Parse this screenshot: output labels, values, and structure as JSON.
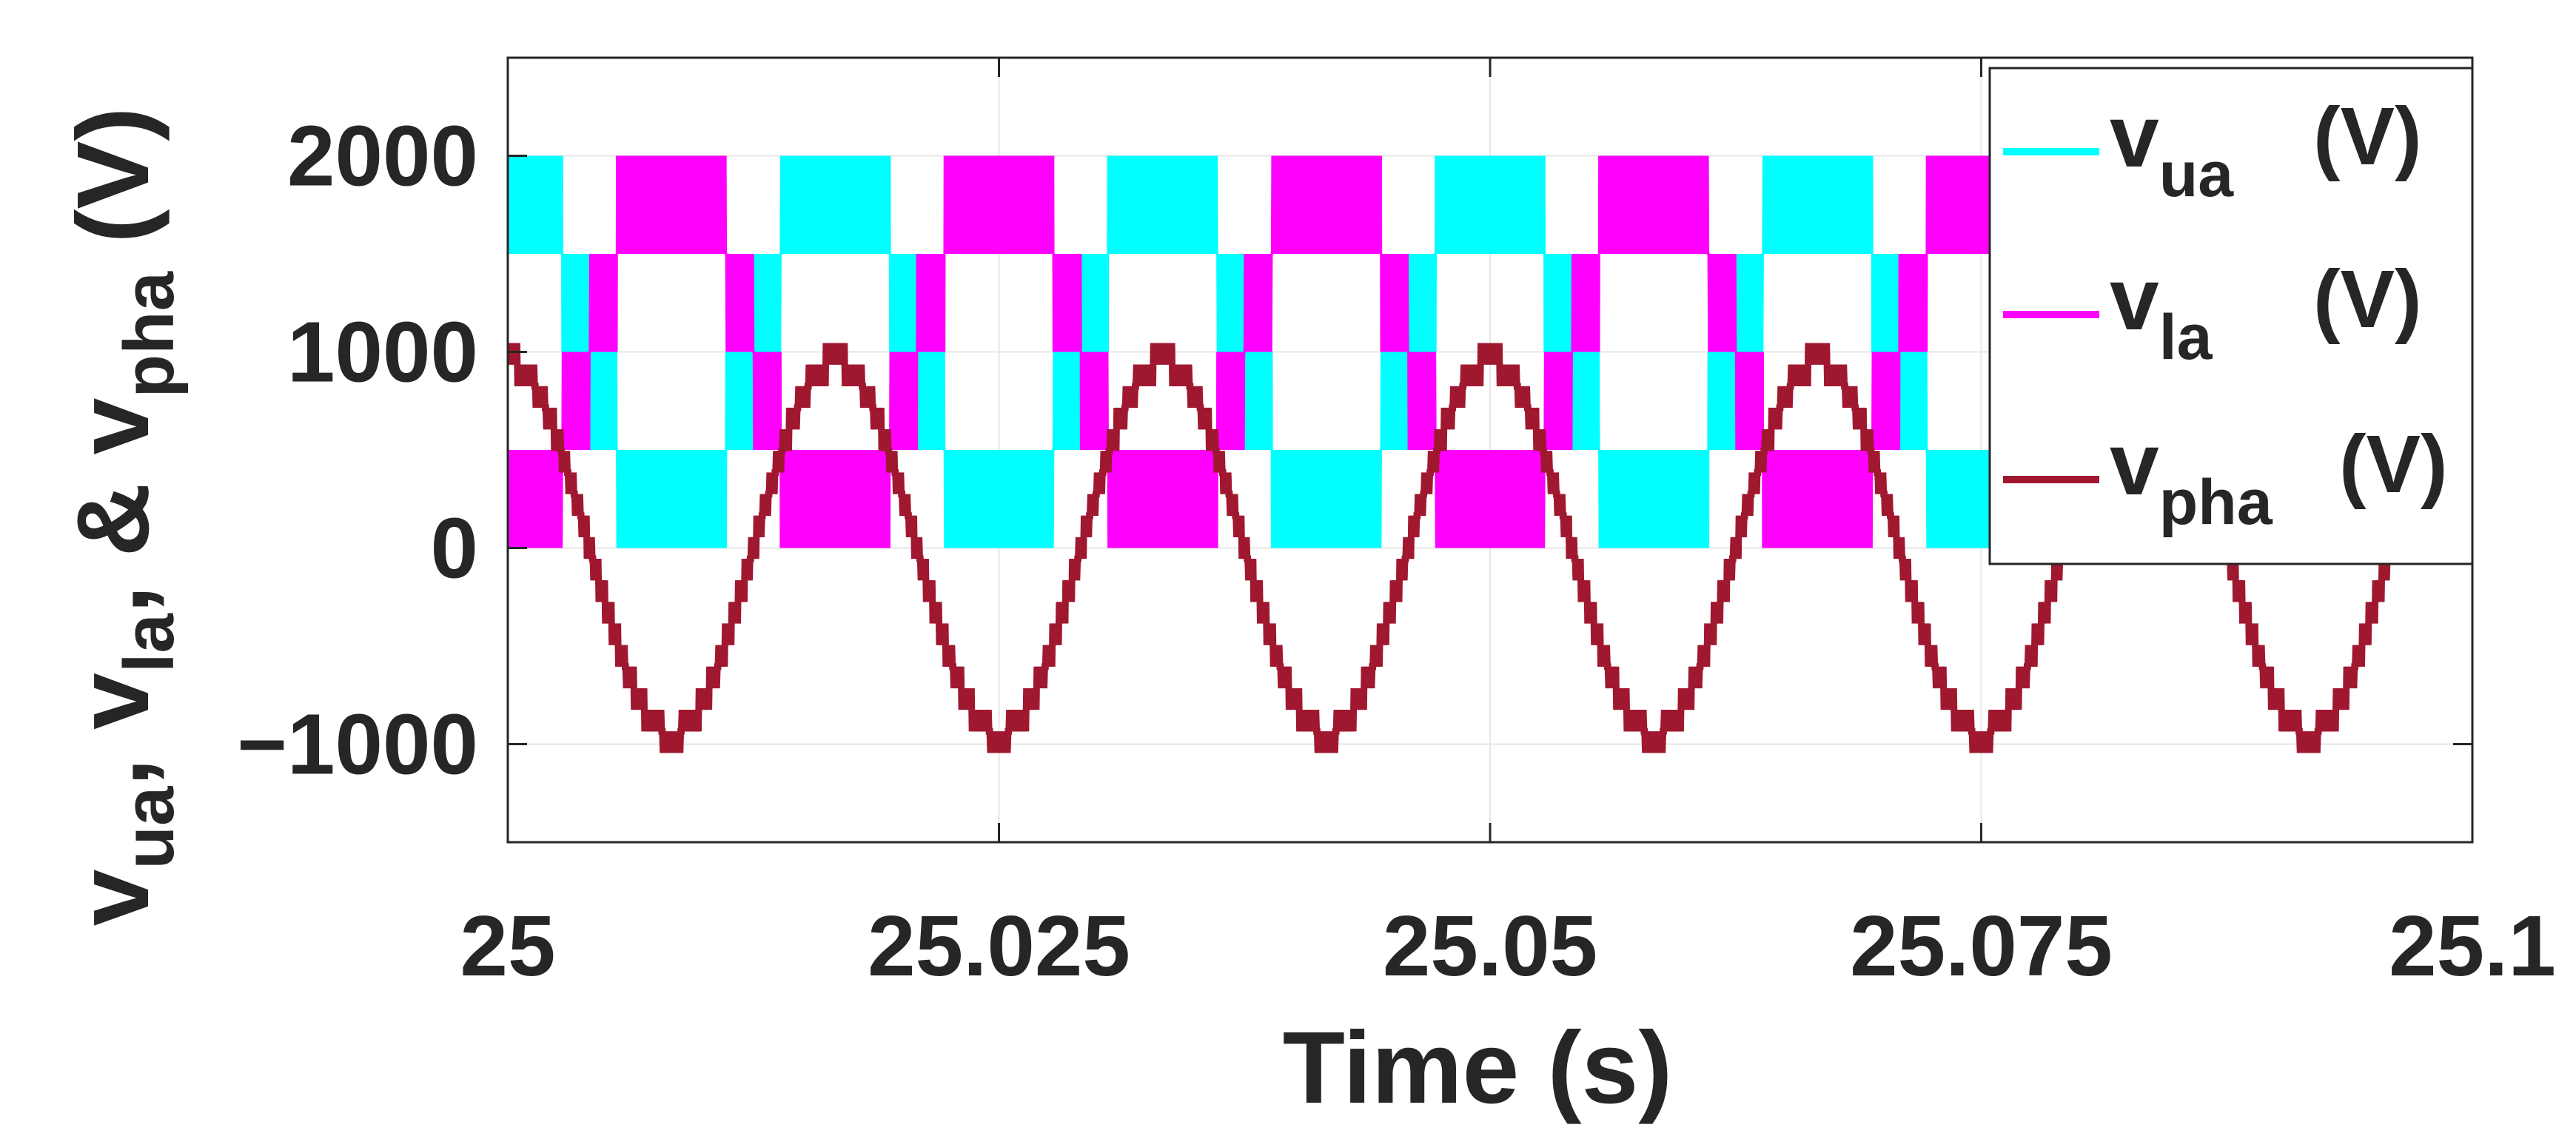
{
  "chart_data": {
    "type": "line",
    "title": "",
    "xlabel": "Time (s)",
    "ylabel": {
      "main1": "v",
      "sub1": "ua",
      "sep1": ", ",
      "main2": "v",
      "sub2": "la",
      "sep2": ", & ",
      "main3": "v",
      "sub3": "pha",
      "unit": " (V)"
    },
    "xlim": [
      25,
      25.1
    ],
    "ylim": [
      -1500,
      2500
    ],
    "x_ticks": [
      25,
      25.025,
      25.05,
      25.075,
      25.1
    ],
    "x_tick_labels": [
      "25",
      "25.025",
      "25.05",
      "25.075",
      "25.1"
    ],
    "y_ticks": [
      -1000,
      0,
      1000,
      2000
    ],
    "y_tick_labels": [
      "−1000",
      "0",
      "1000",
      "2000"
    ],
    "grid": true,
    "legend_placement": "top-right",
    "fundamental_frequency_hz": 60,
    "series": [
      {
        "name_main": "v",
        "name_sub": "ua",
        "name_unit": "(V)",
        "color": "#00FFFF",
        "description": "upper arm voltage, approx. 1000 + 1000*cos(wt), switching between adjacent levels",
        "envelope_min": 0,
        "envelope_max": 2000,
        "ripple_v": 500,
        "phase_deg": 0
      },
      {
        "name_main": "v",
        "name_sub": "la",
        "name_unit": "(V)",
        "color": "#FF00FF",
        "description": "lower arm voltage, approx. 1000 - 1000*cos(wt)",
        "envelope_min": 0,
        "envelope_max": 2000,
        "ripple_v": 500,
        "phase_deg": 180
      },
      {
        "name_main": "v",
        "name_sub": "pha",
        "name_unit": "(V)",
        "color": "#A01830",
        "description": "phase voltage, approx. 950*cos(wt) with small staircase ripple",
        "amplitude": 950,
        "ripple_v": 110,
        "phase_deg": 0
      }
    ]
  }
}
